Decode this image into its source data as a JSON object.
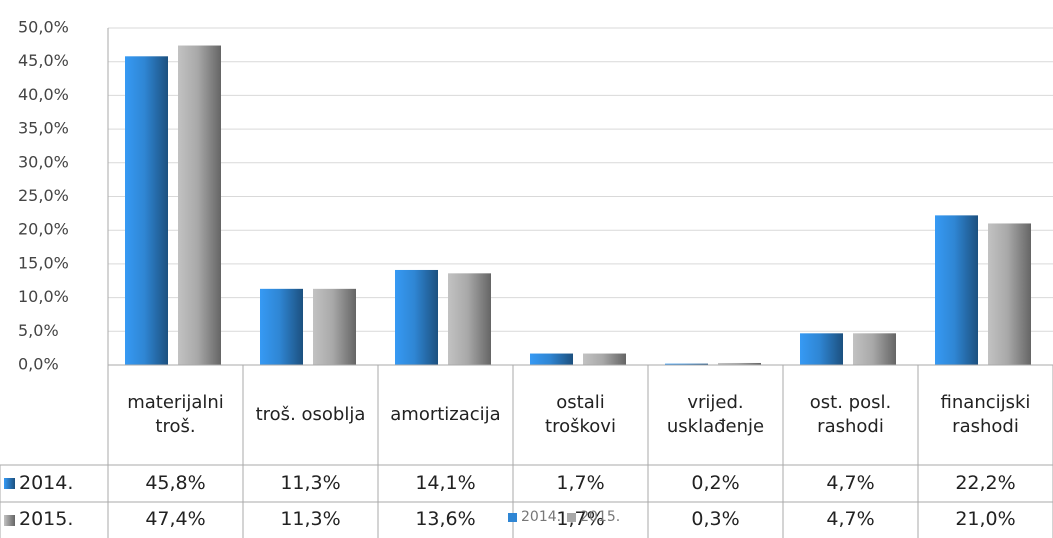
{
  "chart_data": {
    "type": "bar",
    "categories": [
      "materijalni troš.",
      "troš. osoblja",
      "amortizacija",
      "ostali troškovi",
      "vrijed. usklađenje",
      "ost. posl. rashodi",
      "financijski rashodi"
    ],
    "series": [
      {
        "name": "2014.",
        "color": "#2f86d4",
        "values": [
          45.8,
          11.3,
          14.1,
          1.7,
          0.2,
          4.7,
          22.2
        ],
        "value_labels": [
          "45,8%",
          "11,3%",
          "14,1%",
          "1,7%",
          "0,2%",
          "4,7%",
          "22,2%"
        ]
      },
      {
        "name": "2015.",
        "color": "#a9a9a9",
        "values": [
          47.4,
          11.3,
          13.6,
          1.7,
          0.3,
          4.7,
          21.0
        ],
        "value_labels": [
          "47,4%",
          "11,3%",
          "13,6%",
          "1,7%",
          "0,3%",
          "4,7%",
          "21,0%"
        ]
      }
    ],
    "ylim": [
      0,
      50
    ],
    "yticks": [
      {
        "value": 0,
        "label": "0,0%"
      },
      {
        "value": 5,
        "label": "5,0%"
      },
      {
        "value": 10,
        "label": "10,0%"
      },
      {
        "value": 15,
        "label": "15,0%"
      },
      {
        "value": 20,
        "label": "20,0%"
      },
      {
        "value": 25,
        "label": "25,0%"
      },
      {
        "value": 30,
        "label": "30,0%"
      },
      {
        "value": 35,
        "label": "35,0%"
      },
      {
        "value": 40,
        "label": "40,0%"
      },
      {
        "value": 45,
        "label": "45,0%"
      },
      {
        "value": 50,
        "label": "50,0%"
      }
    ],
    "grid": true
  }
}
